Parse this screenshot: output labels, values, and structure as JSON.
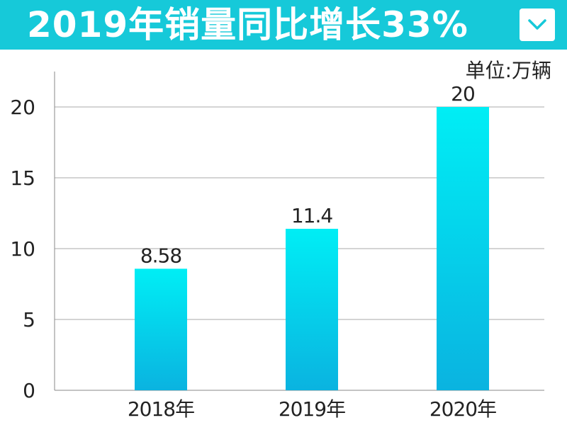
{
  "header": {
    "title": "2019年销量同比增长33%",
    "background_color": "#16c9d9",
    "dropdown_icon": "chevron-down-icon"
  },
  "chart_data": {
    "type": "bar",
    "unit_label": "单位:万辆",
    "categories": [
      "2018年",
      "2019年",
      "2020年"
    ],
    "values": [
      8.58,
      11.4,
      20
    ],
    "value_labels": [
      "8.58",
      "11.4",
      "20"
    ],
    "y_ticks": [
      0,
      5,
      10,
      15,
      20
    ],
    "ylim": [
      0,
      22.5
    ],
    "grid": true,
    "bar_gradient": [
      "#00eef5",
      "#0ab3e0"
    ]
  }
}
